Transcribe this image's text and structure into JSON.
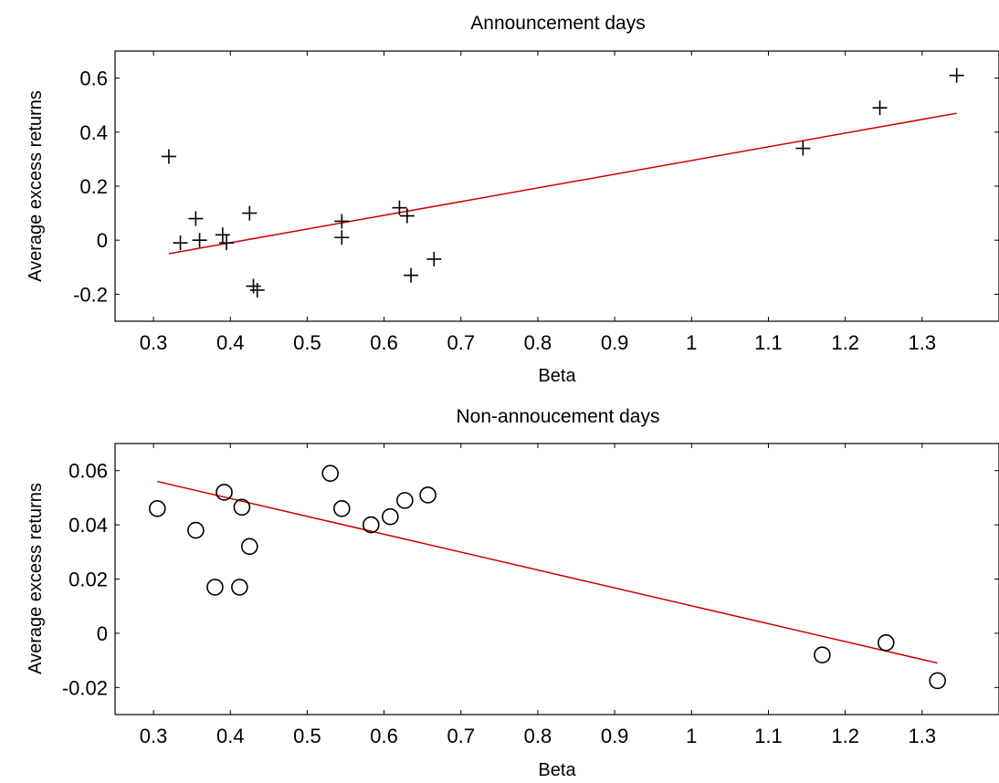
{
  "chart_data": [
    {
      "type": "scatter",
      "title": "Announcement days",
      "xlabel": "Beta",
      "ylabel": "Average excess returns",
      "xlim": [
        0.25,
        1.4
      ],
      "ylim": [
        -0.3,
        0.7
      ],
      "xticks": [
        0.3,
        0.4,
        0.5,
        0.6,
        0.7,
        0.8,
        0.9,
        1,
        1.1,
        1.2,
        1.3
      ],
      "xtick_labels": [
        "0.3",
        "0.4",
        "0.5",
        "0.6",
        "0.7",
        "0.8",
        "0.9",
        "1",
        "1.1",
        "1.2",
        "1.3"
      ],
      "yticks": [
        -0.2,
        0,
        0.2,
        0.4,
        0.6
      ],
      "ytick_labels": [
        "-0.2",
        "0",
        "0.2",
        "0.4",
        "0.6"
      ],
      "marker": "plus",
      "marker_color": "#000000",
      "points": [
        {
          "x": 0.32,
          "y": 0.31
        },
        {
          "x": 0.335,
          "y": -0.01
        },
        {
          "x": 0.355,
          "y": 0.08
        },
        {
          "x": 0.36,
          "y": 0.0
        },
        {
          "x": 0.39,
          "y": 0.02
        },
        {
          "x": 0.395,
          "y": -0.01
        },
        {
          "x": 0.425,
          "y": 0.1
        },
        {
          "x": 0.43,
          "y": -0.17
        },
        {
          "x": 0.435,
          "y": -0.185
        },
        {
          "x": 0.545,
          "y": 0.07
        },
        {
          "x": 0.545,
          "y": 0.01
        },
        {
          "x": 0.62,
          "y": 0.12
        },
        {
          "x": 0.63,
          "y": 0.09
        },
        {
          "x": 0.635,
          "y": -0.13
        },
        {
          "x": 0.665,
          "y": -0.07
        },
        {
          "x": 1.145,
          "y": 0.34
        },
        {
          "x": 1.245,
          "y": 0.49
        },
        {
          "x": 1.345,
          "y": 0.61
        }
      ],
      "fit_line": {
        "color": "#cc0000",
        "x": [
          0.32,
          1.345
        ],
        "y": [
          -0.05,
          0.47
        ]
      },
      "grid": false
    },
    {
      "type": "scatter",
      "title": "Non-annoucement days",
      "xlabel": "Beta",
      "ylabel": "Average excess returns",
      "xlim": [
        0.25,
        1.4
      ],
      "ylim": [
        -0.03,
        0.07
      ],
      "xticks": [
        0.3,
        0.4,
        0.5,
        0.6,
        0.7,
        0.8,
        0.9,
        1,
        1.1,
        1.2,
        1.3
      ],
      "xtick_labels": [
        "0.3",
        "0.4",
        "0.5",
        "0.6",
        "0.7",
        "0.8",
        "0.9",
        "1",
        "1.1",
        "1.2",
        "1.3"
      ],
      "yticks": [
        -0.02,
        0,
        0.02,
        0.04,
        0.06
      ],
      "ytick_labels": [
        "-0.02",
        "0",
        "0.02",
        "0.04",
        "0.06"
      ],
      "marker": "circle",
      "marker_color": "#000000",
      "points": [
        {
          "x": 0.305,
          "y": 0.046
        },
        {
          "x": 0.355,
          "y": 0.038
        },
        {
          "x": 0.38,
          "y": 0.017
        },
        {
          "x": 0.392,
          "y": 0.052
        },
        {
          "x": 0.412,
          "y": 0.017
        },
        {
          "x": 0.415,
          "y": 0.0465
        },
        {
          "x": 0.425,
          "y": 0.032
        },
        {
          "x": 0.53,
          "y": 0.059
        },
        {
          "x": 0.545,
          "y": 0.046
        },
        {
          "x": 0.583,
          "y": 0.04
        },
        {
          "x": 0.608,
          "y": 0.043
        },
        {
          "x": 0.627,
          "y": 0.049
        },
        {
          "x": 0.657,
          "y": 0.051
        },
        {
          "x": 1.17,
          "y": -0.008
        },
        {
          "x": 1.253,
          "y": -0.0035
        },
        {
          "x": 1.32,
          "y": -0.0175
        }
      ],
      "fit_line": {
        "color": "#cc0000",
        "x": [
          0.305,
          1.32
        ],
        "y": [
          0.056,
          -0.011
        ]
      },
      "grid": false
    }
  ]
}
